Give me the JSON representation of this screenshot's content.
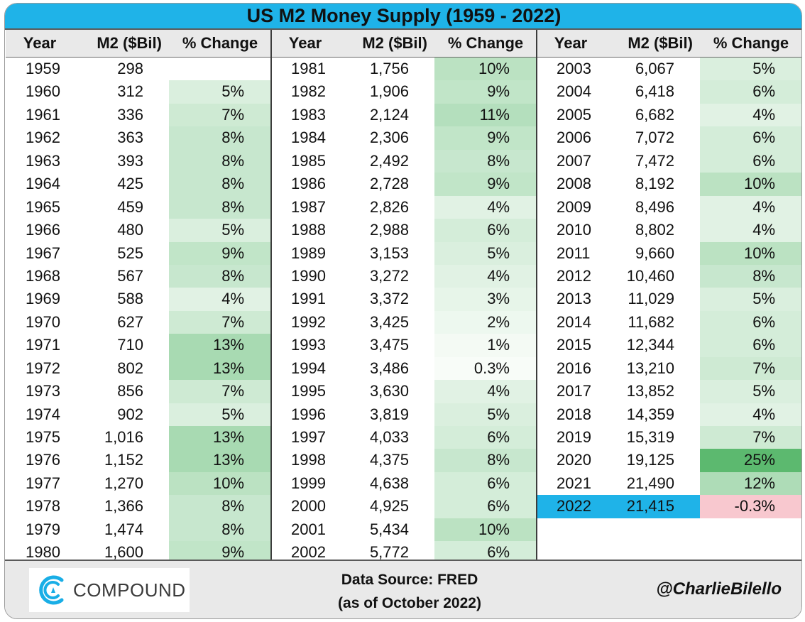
{
  "title": "US M2 Money Supply (1959 - 2022)",
  "footer": {
    "logo_text": "COMPOUND",
    "source_line1": "Data Source: FRED",
    "source_line2": "(as of October 2022)",
    "handle": "@CharlieBilello"
  },
  "colors": {
    "title_bg": "#1fb3e8",
    "highlight_bg": "#1fb3e8",
    "negative_bg": "#f8c8cf",
    "positive_max": "#5cb96f",
    "header_bg": "#e9e9e9"
  },
  "chart_data": {
    "type": "table",
    "columns": [
      "Year",
      "M2 ($Bil)",
      "% Change"
    ],
    "rows": [
      {
        "year": "1959",
        "m2": "298",
        "change": "",
        "pct": null
      },
      {
        "year": "1960",
        "m2": "312",
        "change": "5%",
        "pct": 5
      },
      {
        "year": "1961",
        "m2": "336",
        "change": "7%",
        "pct": 7
      },
      {
        "year": "1962",
        "m2": "363",
        "change": "8%",
        "pct": 8
      },
      {
        "year": "1963",
        "m2": "393",
        "change": "8%",
        "pct": 8
      },
      {
        "year": "1964",
        "m2": "425",
        "change": "8%",
        "pct": 8
      },
      {
        "year": "1965",
        "m2": "459",
        "change": "8%",
        "pct": 8
      },
      {
        "year": "1966",
        "m2": "480",
        "change": "5%",
        "pct": 5
      },
      {
        "year": "1967",
        "m2": "525",
        "change": "9%",
        "pct": 9
      },
      {
        "year": "1968",
        "m2": "567",
        "change": "8%",
        "pct": 8
      },
      {
        "year": "1969",
        "m2": "588",
        "change": "4%",
        "pct": 4
      },
      {
        "year": "1970",
        "m2": "627",
        "change": "7%",
        "pct": 7
      },
      {
        "year": "1971",
        "m2": "710",
        "change": "13%",
        "pct": 13
      },
      {
        "year": "1972",
        "m2": "802",
        "change": "13%",
        "pct": 13
      },
      {
        "year": "1973",
        "m2": "856",
        "change": "7%",
        "pct": 7
      },
      {
        "year": "1974",
        "m2": "902",
        "change": "5%",
        "pct": 5
      },
      {
        "year": "1975",
        "m2": "1,016",
        "change": "13%",
        "pct": 13
      },
      {
        "year": "1976",
        "m2": "1,152",
        "change": "13%",
        "pct": 13
      },
      {
        "year": "1977",
        "m2": "1,270",
        "change": "10%",
        "pct": 10
      },
      {
        "year": "1978",
        "m2": "1,366",
        "change": "8%",
        "pct": 8
      },
      {
        "year": "1979",
        "m2": "1,474",
        "change": "8%",
        "pct": 8
      },
      {
        "year": "1980",
        "m2": "1,600",
        "change": "9%",
        "pct": 9
      },
      {
        "year": "1981",
        "m2": "1,756",
        "change": "10%",
        "pct": 10
      },
      {
        "year": "1982",
        "m2": "1,906",
        "change": "9%",
        "pct": 9
      },
      {
        "year": "1983",
        "m2": "2,124",
        "change": "11%",
        "pct": 11
      },
      {
        "year": "1984",
        "m2": "2,306",
        "change": "9%",
        "pct": 9
      },
      {
        "year": "1985",
        "m2": "2,492",
        "change": "8%",
        "pct": 8
      },
      {
        "year": "1986",
        "m2": "2,728",
        "change": "9%",
        "pct": 9
      },
      {
        "year": "1987",
        "m2": "2,826",
        "change": "4%",
        "pct": 4
      },
      {
        "year": "1988",
        "m2": "2,988",
        "change": "6%",
        "pct": 6
      },
      {
        "year": "1989",
        "m2": "3,153",
        "change": "5%",
        "pct": 5
      },
      {
        "year": "1990",
        "m2": "3,272",
        "change": "4%",
        "pct": 4
      },
      {
        "year": "1991",
        "m2": "3,372",
        "change": "3%",
        "pct": 3
      },
      {
        "year": "1992",
        "m2": "3,425",
        "change": "2%",
        "pct": 2
      },
      {
        "year": "1993",
        "m2": "3,475",
        "change": "1%",
        "pct": 1
      },
      {
        "year": "1994",
        "m2": "3,486",
        "change": "0.3%",
        "pct": 0.3
      },
      {
        "year": "1995",
        "m2": "3,630",
        "change": "4%",
        "pct": 4
      },
      {
        "year": "1996",
        "m2": "3,819",
        "change": "5%",
        "pct": 5
      },
      {
        "year": "1997",
        "m2": "4,033",
        "change": "6%",
        "pct": 6
      },
      {
        "year": "1998",
        "m2": "4,375",
        "change": "8%",
        "pct": 8
      },
      {
        "year": "1999",
        "m2": "4,638",
        "change": "6%",
        "pct": 6
      },
      {
        "year": "2000",
        "m2": "4,925",
        "change": "6%",
        "pct": 6
      },
      {
        "year": "2001",
        "m2": "5,434",
        "change": "10%",
        "pct": 10
      },
      {
        "year": "2002",
        "m2": "5,772",
        "change": "6%",
        "pct": 6
      },
      {
        "year": "2003",
        "m2": "6,067",
        "change": "5%",
        "pct": 5
      },
      {
        "year": "2004",
        "m2": "6,418",
        "change": "6%",
        "pct": 6
      },
      {
        "year": "2005",
        "m2": "6,682",
        "change": "4%",
        "pct": 4
      },
      {
        "year": "2006",
        "m2": "7,072",
        "change": "6%",
        "pct": 6
      },
      {
        "year": "2007",
        "m2": "7,472",
        "change": "6%",
        "pct": 6
      },
      {
        "year": "2008",
        "m2": "8,192",
        "change": "10%",
        "pct": 10
      },
      {
        "year": "2009",
        "m2": "8,496",
        "change": "4%",
        "pct": 4
      },
      {
        "year": "2010",
        "m2": "8,802",
        "change": "4%",
        "pct": 4
      },
      {
        "year": "2011",
        "m2": "9,660",
        "change": "10%",
        "pct": 10
      },
      {
        "year": "2012",
        "m2": "10,460",
        "change": "8%",
        "pct": 8
      },
      {
        "year": "2013",
        "m2": "11,029",
        "change": "5%",
        "pct": 5
      },
      {
        "year": "2014",
        "m2": "11,682",
        "change": "6%",
        "pct": 6
      },
      {
        "year": "2015",
        "m2": "12,344",
        "change": "6%",
        "pct": 6
      },
      {
        "year": "2016",
        "m2": "13,210",
        "change": "7%",
        "pct": 7
      },
      {
        "year": "2017",
        "m2": "13,852",
        "change": "5%",
        "pct": 5
      },
      {
        "year": "2018",
        "m2": "14,359",
        "change": "4%",
        "pct": 4
      },
      {
        "year": "2019",
        "m2": "15,319",
        "change": "7%",
        "pct": 7
      },
      {
        "year": "2020",
        "m2": "19,125",
        "change": "25%",
        "pct": 25
      },
      {
        "year": "2021",
        "m2": "21,490",
        "change": "12%",
        "pct": 12
      },
      {
        "year": "2022",
        "m2": "21,415",
        "change": "-0.3%",
        "pct": -0.3,
        "highlight": true
      }
    ]
  }
}
